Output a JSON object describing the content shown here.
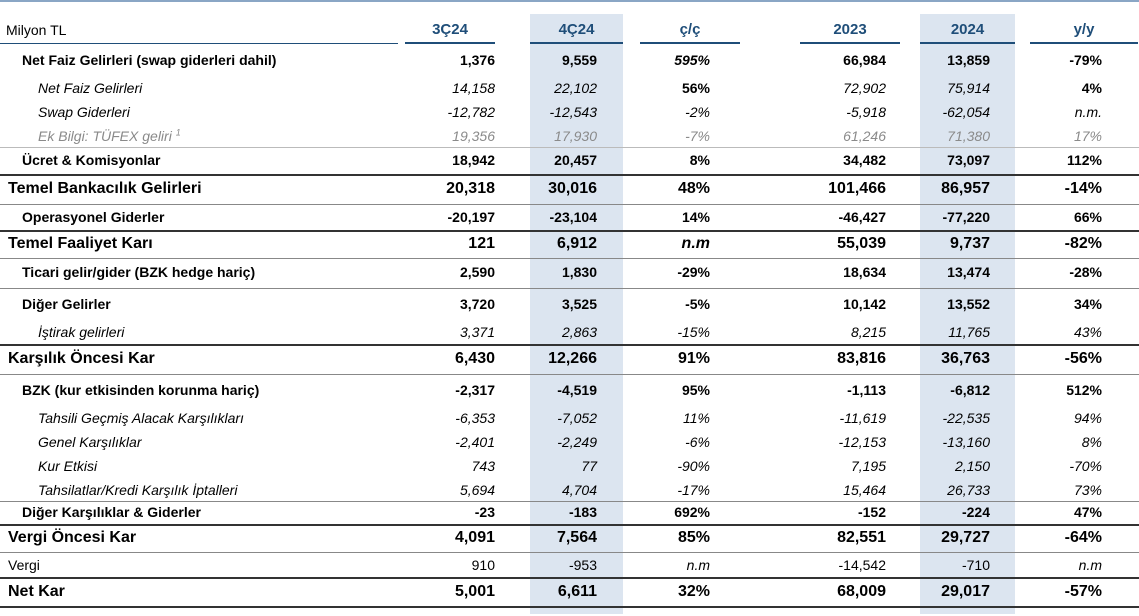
{
  "header": {
    "unit": "Milyon TL",
    "cols": [
      "3Ç24",
      "4Ç24",
      "ç/ç",
      "2023",
      "2024",
      "y/y"
    ]
  },
  "rows": [
    {
      "label": "Net Faiz Gelirleri (swap giderleri dahil)",
      "v": [
        "1,376",
        "9,559",
        "595%",
        "66,984",
        "13,859",
        "-79%"
      ]
    },
    {
      "label": "Net Faiz Gelirleri",
      "v": [
        "14,158",
        "22,102",
        "56%",
        "72,902",
        "75,914",
        "4%"
      ]
    },
    {
      "label": "Swap Giderleri",
      "v": [
        "-12,782",
        "-12,543",
        "-2%",
        "-5,918",
        "-62,054",
        "n.m."
      ]
    },
    {
      "label": "Ek Bilgi: TÜFEX geliri",
      "note": "1",
      "v": [
        "19,356",
        "17,930",
        "-7%",
        "61,246",
        "71,380",
        "17%"
      ]
    },
    {
      "label": "Ücret & Komisyonlar",
      "v": [
        "18,942",
        "20,457",
        "8%",
        "34,482",
        "73,097",
        "112%"
      ]
    },
    {
      "label": "Temel Bankacılık Gelirleri",
      "v": [
        "20,318",
        "30,016",
        "48%",
        "101,466",
        "86,957",
        "-14%"
      ]
    },
    {
      "label": "Operasyonel Giderler",
      "v": [
        "-20,197",
        "-23,104",
        "14%",
        "-46,427",
        "-77,220",
        "66%"
      ]
    },
    {
      "label": "Temel Faaliyet Karı",
      "v": [
        "121",
        "6,912",
        "n.m",
        "55,039",
        "9,737",
        "-82%"
      ]
    },
    {
      "label": "Ticari gelir/gider (BZK hedge hariç)",
      "v": [
        "2,590",
        "1,830",
        "-29%",
        "18,634",
        "13,474",
        "-28%"
      ]
    },
    {
      "label": "Diğer Gelirler",
      "v": [
        "3,720",
        "3,525",
        "-5%",
        "10,142",
        "13,552",
        "34%"
      ]
    },
    {
      "label": "İştirak gelirleri",
      "v": [
        "3,371",
        "2,863",
        "-15%",
        "8,215",
        "11,765",
        "43%"
      ]
    },
    {
      "label": "Karşılık Öncesi Kar",
      "v": [
        "6,430",
        "12,266",
        "91%",
        "83,816",
        "36,763",
        "-56%"
      ]
    },
    {
      "label": "BZK (kur etkisinden korunma hariç)",
      "v": [
        "-2,317",
        "-4,519",
        "95%",
        "-1,113",
        "-6,812",
        "512%"
      ]
    },
    {
      "label": "Tahsili Geçmiş Alacak Karşılıkları",
      "v": [
        "-6,353",
        "-7,052",
        "11%",
        "-11,619",
        "-22,535",
        "94%"
      ]
    },
    {
      "label": "Genel Karşılıklar",
      "v": [
        "-2,401",
        "-2,249",
        "-6%",
        "-12,153",
        "-13,160",
        "8%"
      ]
    },
    {
      "label": "Kur Etkisi",
      "v": [
        "743",
        "77",
        "-90%",
        "7,195",
        "2,150",
        "-70%"
      ]
    },
    {
      "label": "Tahsilatlar/Kredi Karşılık İptalleri",
      "v": [
        "5,694",
        "4,704",
        "-17%",
        "15,464",
        "26,733",
        "73%"
      ]
    },
    {
      "label": "Diğer Karşılıklar & Giderler",
      "v": [
        "-23",
        "-183",
        "692%",
        "-152",
        "-224",
        "47%"
      ]
    },
    {
      "label": "Vergi Öncesi Kar",
      "v": [
        "4,091",
        "7,564",
        "85%",
        "82,551",
        "29,727",
        "-64%"
      ]
    },
    {
      "label": "Vergi",
      "v": [
        "910",
        "-953",
        "n.m",
        "-14,542",
        "-710",
        "n.m"
      ]
    },
    {
      "label": "Net Kar",
      "v": [
        "5,001",
        "6,611",
        "32%",
        "68,009",
        "29,017",
        "-57%"
      ]
    }
  ]
}
